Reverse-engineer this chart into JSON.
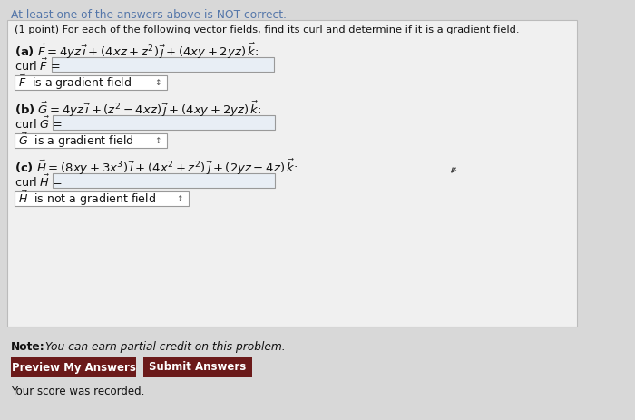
{
  "bg_color": "#d8d8d8",
  "panel_color": "#f0f0f0",
  "panel_border": "#bbbbbb",
  "header_color": "#5577aa",
  "header_text": "At least one of the answers above is NOT correct.",
  "title_text": "(1 point) For each of the following vector fields, find its curl and determine if it is a gradient field.",
  "note_bold": "Note:",
  "note_text": " You can earn partial credit on this problem.",
  "btn1_text": "Preview My Answers",
  "btn2_text": "Submit Answers",
  "btn_color": "#6b1a1a",
  "btn_text_color": "#ffffff",
  "footer_text": "Your score was recorded.",
  "input_box_color": "#e8eef5",
  "input_border": "#999999",
  "dropdown_border": "#999999",
  "text_color": "#111111",
  "cursor_color": "#444444"
}
